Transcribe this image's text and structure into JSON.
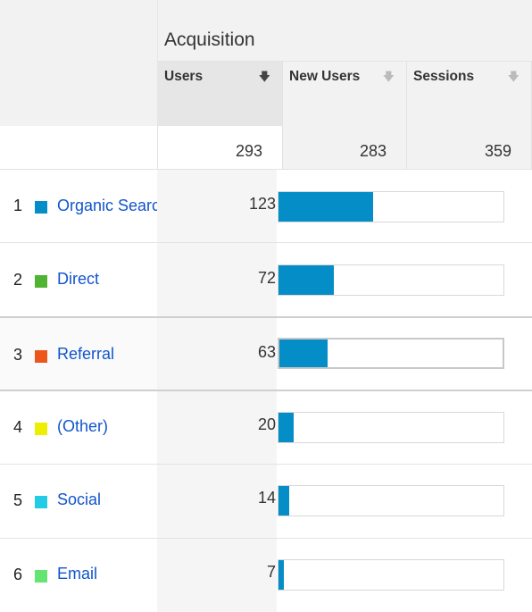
{
  "header": {
    "group_title": "Acquisition",
    "columns": [
      {
        "label": "Users",
        "sort_icon": "arrow-down-icon",
        "active": true
      },
      {
        "label": "New Users",
        "sort_icon": "arrow-down-icon",
        "active": false
      },
      {
        "label": "Sessions",
        "sort_icon": "arrow-down-icon",
        "active": false
      }
    ]
  },
  "totals": {
    "users": "293",
    "new_users": "283",
    "sessions": "359"
  },
  "rows": [
    {
      "rank": "1",
      "channel": "Organic Search",
      "color": "#058dc7",
      "users": "123",
      "share": 0.4198
    },
    {
      "rank": "2",
      "channel": "Direct",
      "color": "#50b432",
      "users": "72",
      "share": 0.2457
    },
    {
      "rank": "3",
      "channel": "Referral",
      "color": "#ed561b",
      "users": "63",
      "share": 0.215
    },
    {
      "rank": "4",
      "channel": "(Other)",
      "color": "#edef00",
      "users": "20",
      "share": 0.0683
    },
    {
      "rank": "5",
      "channel": "Social",
      "color": "#24cbe5",
      "users": "14",
      "share": 0.0478
    },
    {
      "rank": "6",
      "channel": "Email",
      "color": "#64e572",
      "users": "7",
      "share": 0.0239
    }
  ],
  "bar_color": "#058dc7"
}
